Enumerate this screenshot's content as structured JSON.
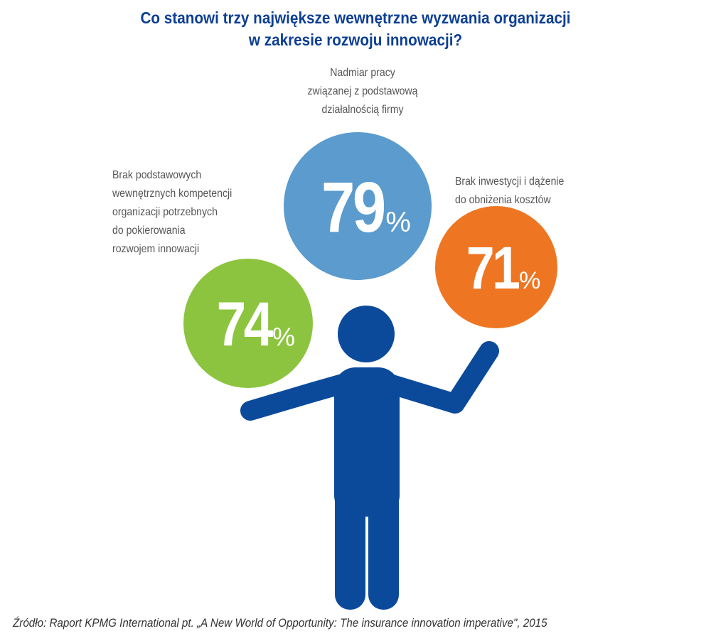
{
  "title": {
    "line1": "Co stanowi trzy największe wewnętrzne wyzwania organizacji",
    "line2": "w zakresie rozwoju innowacji?"
  },
  "chart_data": {
    "type": "bubble-infographic",
    "title": "Co stanowi trzy największe wewnętrzne wyzwania organizacji w zakresie rozwoju innowacji?",
    "unit": "%",
    "items": [
      {
        "label_lines": [
          "Nadmiar pracy",
          "związanej z podstawową",
          "działalnością firmy"
        ],
        "value": 79,
        "value_text": "79",
        "color": "#5b9bcd"
      },
      {
        "label_lines": [
          "Brak inwestycji i dążenie",
          "do obniżenia kosztów"
        ],
        "value": 71,
        "value_text": "71",
        "color": "#ee7623"
      },
      {
        "label_lines": [
          "Brak podstawowych",
          "wewnętrznych kompetencji",
          "organizacji potrzebnych",
          "do pokierowania",
          "rozwojem innowacji"
        ],
        "value": 74,
        "value_text": "74",
        "color": "#8cc43f"
      }
    ],
    "percent_sign": "%"
  },
  "colors": {
    "title": "#0d3f94",
    "figure": "#0b4a9b"
  },
  "footer": "Źródło: Raport KPMG International pt. „A New World of Opportunity: The insurance innovation imperative\", 2015"
}
